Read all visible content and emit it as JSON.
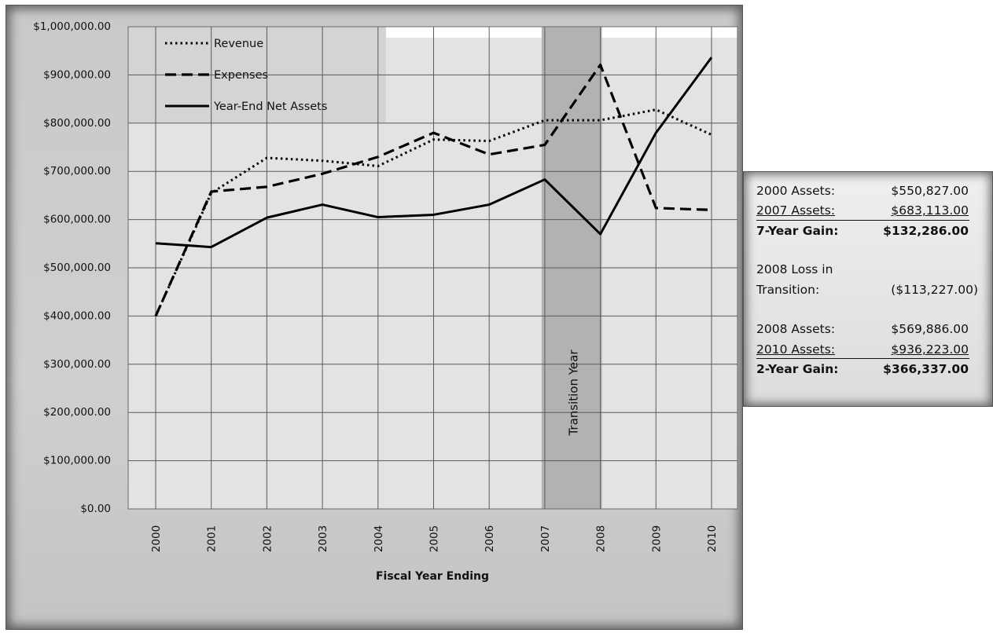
{
  "chart_data": {
    "type": "line",
    "title": "",
    "xlabel": "Fiscal Year Ending",
    "ylabel": "",
    "categories": [
      "2000",
      "2001",
      "2002",
      "2003",
      "2004",
      "2005",
      "2006",
      "2007",
      "2008",
      "2009",
      "2010"
    ],
    "ylim": [
      0,
      1000000
    ],
    "yticks": [
      0,
      100000,
      200000,
      300000,
      400000,
      500000,
      600000,
      700000,
      800000,
      900000,
      1000000
    ],
    "ytick_labels": [
      "$0.00",
      "$100,000.00",
      "$200,000.00",
      "$300,000.00",
      "$400,000.00",
      "$500,000.00",
      "$600,000.00",
      "$700,000.00",
      "$800,000.00",
      "$900,000.00",
      "$1,000,000.00"
    ],
    "grid": true,
    "legend_position": "top-left",
    "series": [
      {
        "name": "Revenue",
        "style": "dotted",
        "values": [
          400000,
          655000,
          728000,
          722000,
          711000,
          766000,
          763000,
          806000,
          806000,
          828000,
          776000
        ]
      },
      {
        "name": "Expenses",
        "style": "dashed",
        "values": [
          400000,
          658000,
          668000,
          695000,
          730000,
          780000,
          735000,
          755000,
          921000,
          624000,
          620000
        ]
      },
      {
        "name": "Year-End Net Assets",
        "style": "solid",
        "values": [
          550827,
          543000,
          604000,
          631000,
          605000,
          610000,
          631000,
          683113,
          569886,
          780000,
          936223
        ]
      }
    ],
    "highlight_band": {
      "from": "2007",
      "to": "2008",
      "label": "Transition Year",
      "color": "#b2b2b2"
    },
    "colors": {
      "line": "#000000",
      "grid": "#5a5a5a",
      "plot_bg": "#e3e3e3",
      "frame_bg": "#cbcbcb"
    }
  },
  "summary": {
    "rows1": [
      {
        "label": "2000 Assets:",
        "value": "$550,827.00"
      },
      {
        "label": "2007 Assets:",
        "value": "$683,113.00"
      },
      {
        "label": "7-Year Gain:",
        "value": "$132,286.00"
      }
    ],
    "loss_label_line1": "2008 Loss in",
    "loss_label_line2": "Transition:",
    "loss_value": "($113,227.00)",
    "rows2": [
      {
        "label": "2008 Assets:",
        "value": "$569,886.00"
      },
      {
        "label": "2010 Assets:",
        "value": "$936,223.00"
      },
      {
        "label": "2-Year Gain:",
        "value": "$366,337.00"
      }
    ]
  }
}
